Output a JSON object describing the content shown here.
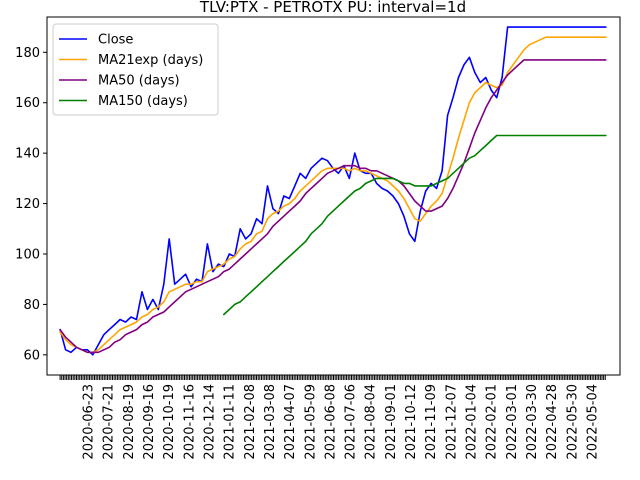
{
  "chart_data": {
    "type": "line",
    "title": "TLV:PTX - PETROTX      PU: interval=1d",
    "xlabel": "",
    "ylabel": "",
    "x_tick_labels": [
      "2020-06-23",
      "2020-07-21",
      "2020-08-19",
      "2020-09-16",
      "2020-10-19",
      "2020-11-16",
      "2020-12-14",
      "2021-01-11",
      "2021-02-08",
      "2021-03-08",
      "2021-04-07",
      "2021-05-09",
      "2021-06-08",
      "2021-07-06",
      "2021-08-04",
      "2021-09-01",
      "2021-10-12",
      "2021-11-09",
      "2021-12-07",
      "2022-01-04",
      "2022-02-01",
      "2022-03-01",
      "2022-03-30",
      "2022-04-28",
      "2022-05-30",
      "2022-05-04"
    ],
    "y_ticks": [
      60,
      80,
      100,
      120,
      140,
      160,
      180
    ],
    "y_tick_labels": [
      "60",
      "80",
      "100",
      "120",
      "140",
      "160",
      "180"
    ],
    "ylim": [
      52,
      194
    ],
    "xlim": [
      -12,
      513
    ],
    "grid": false,
    "legend_position": "upper-left",
    "series": [
      {
        "name": "Close",
        "color": "#0000ff",
        "x": [
          0,
          5,
          10,
          15,
          20,
          25,
          30,
          35,
          40,
          45,
          50,
          55,
          60,
          65,
          70,
          75,
          80,
          85,
          90,
          95,
          100,
          105,
          110,
          115,
          120,
          125,
          130,
          135,
          140,
          145,
          150,
          155,
          160,
          165,
          170,
          175,
          180,
          185,
          190,
          195,
          200,
          205,
          210,
          215,
          220,
          225,
          230,
          235,
          240,
          245,
          250,
          255,
          260,
          265,
          270,
          275,
          280,
          285,
          290,
          295,
          300,
          305,
          310,
          315,
          320,
          325,
          330,
          335,
          340,
          345,
          350,
          355,
          360,
          365,
          370,
          375,
          380,
          385,
          390,
          395,
          400,
          405,
          410,
          415,
          420,
          425,
          430,
          435,
          440,
          445,
          450,
          455,
          460,
          465,
          470,
          475,
          480,
          485,
          490,
          495,
          500
        ],
        "values": [
          70,
          62,
          61,
          63,
          62,
          62,
          60,
          64,
          68,
          70,
          72,
          74,
          73,
          75,
          74,
          85,
          78,
          82,
          78,
          88,
          106,
          88,
          90,
          92,
          87,
          90,
          89,
          104,
          93,
          96,
          95,
          100,
          99,
          110,
          106,
          108,
          114,
          112,
          127,
          118,
          116,
          123,
          122,
          127,
          132,
          130,
          134,
          136,
          138,
          137,
          134,
          132,
          135,
          130,
          140,
          133,
          132,
          132,
          128,
          126,
          125,
          123,
          120,
          115,
          108,
          105,
          117,
          125,
          128,
          126,
          133,
          155,
          162,
          170,
          175,
          178,
          172,
          168,
          170,
          165,
          162,
          170,
          190,
          190,
          190,
          190,
          190,
          190,
          190,
          190,
          190,
          190,
          190,
          190,
          190,
          190,
          190,
          190,
          190,
          190,
          190
        ]
      },
      {
        "name": "MA21exp (days)",
        "color": "#ffa500",
        "x": [
          0,
          5,
          10,
          15,
          20,
          25,
          30,
          35,
          40,
          45,
          50,
          55,
          60,
          65,
          70,
          75,
          80,
          85,
          90,
          95,
          100,
          105,
          110,
          115,
          120,
          125,
          130,
          135,
          140,
          145,
          150,
          155,
          160,
          165,
          170,
          175,
          180,
          185,
          190,
          195,
          200,
          205,
          210,
          215,
          220,
          225,
          230,
          235,
          240,
          245,
          250,
          255,
          260,
          265,
          270,
          275,
          280,
          285,
          290,
          295,
          300,
          305,
          310,
          315,
          320,
          325,
          330,
          335,
          340,
          345,
          350,
          355,
          360,
          365,
          370,
          375,
          380,
          385,
          390,
          395,
          400,
          405,
          410,
          415,
          420,
          425,
          430,
          435,
          440,
          445,
          450,
          455,
          460,
          465,
          470,
          475,
          480,
          485,
          490,
          495,
          500
        ],
        "values": [
          69,
          66,
          64,
          63,
          62,
          61,
          61,
          62,
          64,
          66,
          68,
          70,
          71,
          72,
          73,
          75,
          76,
          78,
          79,
          81,
          85,
          86,
          87,
          88,
          88,
          89,
          89,
          93,
          94,
          95,
          96,
          98,
          99,
          102,
          104,
          105,
          108,
          109,
          114,
          116,
          117,
          119,
          120,
          122,
          125,
          127,
          129,
          131,
          133,
          134,
          134,
          134,
          134,
          133,
          134,
          133,
          133,
          132,
          131,
          130,
          129,
          127,
          125,
          122,
          118,
          114,
          113,
          116,
          119,
          121,
          124,
          131,
          138,
          146,
          153,
          160,
          164,
          166,
          168,
          167,
          166,
          167,
          172,
          175,
          178,
          181,
          183,
          184,
          185,
          186,
          186,
          186,
          186,
          186,
          186,
          186,
          186,
          186,
          186,
          186,
          186
        ]
      },
      {
        "name": "MA50 (days)",
        "color": "#800080",
        "x": [
          0,
          5,
          10,
          15,
          20,
          25,
          30,
          35,
          40,
          45,
          50,
          55,
          60,
          65,
          70,
          75,
          80,
          85,
          90,
          95,
          100,
          105,
          110,
          115,
          120,
          125,
          130,
          135,
          140,
          145,
          150,
          155,
          160,
          165,
          170,
          175,
          180,
          185,
          190,
          195,
          200,
          205,
          210,
          215,
          220,
          225,
          230,
          235,
          240,
          245,
          250,
          255,
          260,
          265,
          270,
          275,
          280,
          285,
          290,
          295,
          300,
          305,
          310,
          315,
          320,
          325,
          330,
          335,
          340,
          345,
          350,
          355,
          360,
          365,
          370,
          375,
          380,
          385,
          390,
          395,
          400,
          405,
          410,
          415,
          420,
          425,
          430,
          435,
          440,
          445,
          450,
          455,
          460,
          465,
          470,
          475,
          480,
          485,
          490,
          495,
          500
        ],
        "values": [
          70,
          67,
          65,
          63,
          62,
          61,
          61,
          61,
          62,
          63,
          65,
          66,
          68,
          69,
          70,
          72,
          73,
          75,
          76,
          77,
          79,
          81,
          83,
          85,
          86,
          87,
          88,
          89,
          90,
          91,
          93,
          94,
          96,
          98,
          100,
          102,
          104,
          106,
          108,
          111,
          113,
          115,
          117,
          119,
          121,
          124,
          126,
          128,
          130,
          132,
          133,
          134,
          135,
          135,
          135,
          134,
          134,
          133,
          133,
          132,
          131,
          130,
          129,
          127,
          124,
          121,
          119,
          117,
          117,
          118,
          119,
          122,
          126,
          131,
          136,
          142,
          148,
          153,
          158,
          162,
          165,
          168,
          171,
          173,
          175,
          177,
          177,
          177,
          177,
          177,
          177,
          177,
          177,
          177,
          177,
          177,
          177,
          177,
          177,
          177,
          177
        ]
      },
      {
        "name": "MA150 (days)",
        "color": "#008000",
        "x": [
          150,
          155,
          160,
          165,
          170,
          175,
          180,
          185,
          190,
          195,
          200,
          205,
          210,
          215,
          220,
          225,
          230,
          235,
          240,
          245,
          250,
          255,
          260,
          265,
          270,
          275,
          280,
          285,
          290,
          295,
          300,
          305,
          310,
          315,
          320,
          325,
          330,
          335,
          340,
          345,
          350,
          355,
          360,
          365,
          370,
          375,
          380,
          385,
          390,
          395,
          400,
          405,
          410,
          415,
          420,
          425,
          430,
          435,
          440,
          445,
          450,
          455,
          460,
          465,
          470,
          475,
          480,
          485,
          490,
          495,
          500
        ],
        "values": [
          76,
          78,
          80,
          81,
          83,
          85,
          87,
          89,
          91,
          93,
          95,
          97,
          99,
          101,
          103,
          105,
          108,
          110,
          112,
          115,
          117,
          119,
          121,
          123,
          125,
          126,
          128,
          129,
          130,
          130,
          130,
          130,
          129,
          128,
          128,
          127,
          127,
          127,
          127,
          128,
          129,
          130,
          132,
          134,
          136,
          138,
          139,
          141,
          143,
          145,
          147,
          147,
          147,
          147,
          147,
          147,
          147,
          147,
          147,
          147,
          147,
          147,
          147,
          147,
          147,
          147,
          147,
          147,
          147,
          147,
          147
        ]
      }
    ]
  }
}
